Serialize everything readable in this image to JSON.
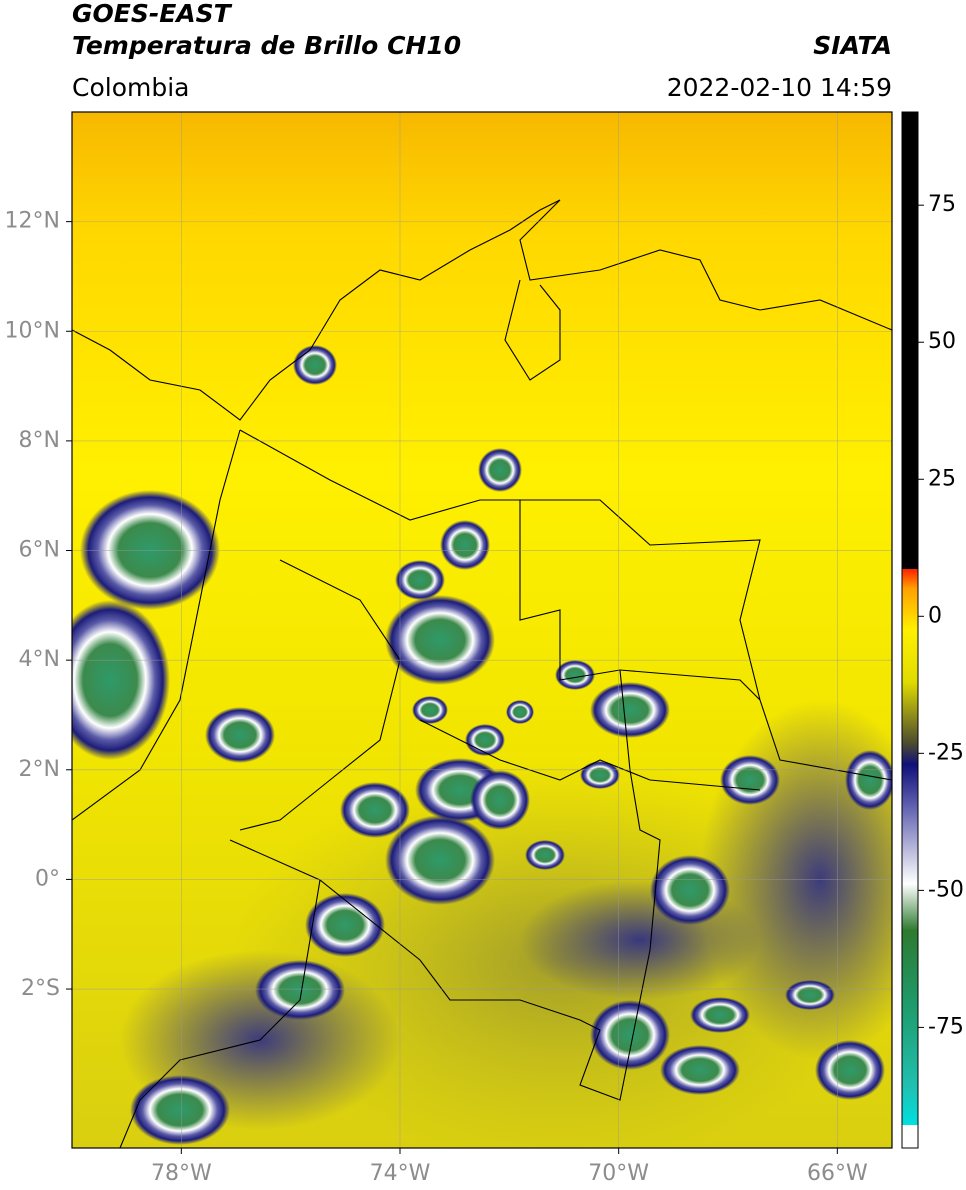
{
  "header": {
    "title": "GOES-EAST",
    "subtitle": "Temperatura de Brillo CH10",
    "region": "Colombia",
    "source": "SIATA",
    "datetime": "2022-02-10 14:59"
  },
  "map": {
    "xlim": [
      -80,
      -65
    ],
    "ylim": [
      -4.9,
      14
    ],
    "grid": true,
    "xticks": [
      {
        "value": -78,
        "label": "78°W"
      },
      {
        "value": -74,
        "label": "74°W"
      },
      {
        "value": -70,
        "label": "70°W"
      },
      {
        "value": -66,
        "label": "66°W"
      }
    ],
    "yticks": [
      {
        "value": 12,
        "label": "12°N"
      },
      {
        "value": 10,
        "label": "10°N"
      },
      {
        "value": 8,
        "label": "8°N"
      },
      {
        "value": 6,
        "label": "6°N"
      },
      {
        "value": 4,
        "label": "4°N"
      },
      {
        "value": 2,
        "label": "2°N"
      },
      {
        "value": 0,
        "label": "0°"
      },
      {
        "value": -2,
        "label": "2°S"
      }
    ]
  },
  "colorbar": {
    "lim": [
      -97,
      92
    ],
    "ticks": [
      75,
      50,
      25,
      0,
      -25,
      -50,
      -75
    ]
  }
}
